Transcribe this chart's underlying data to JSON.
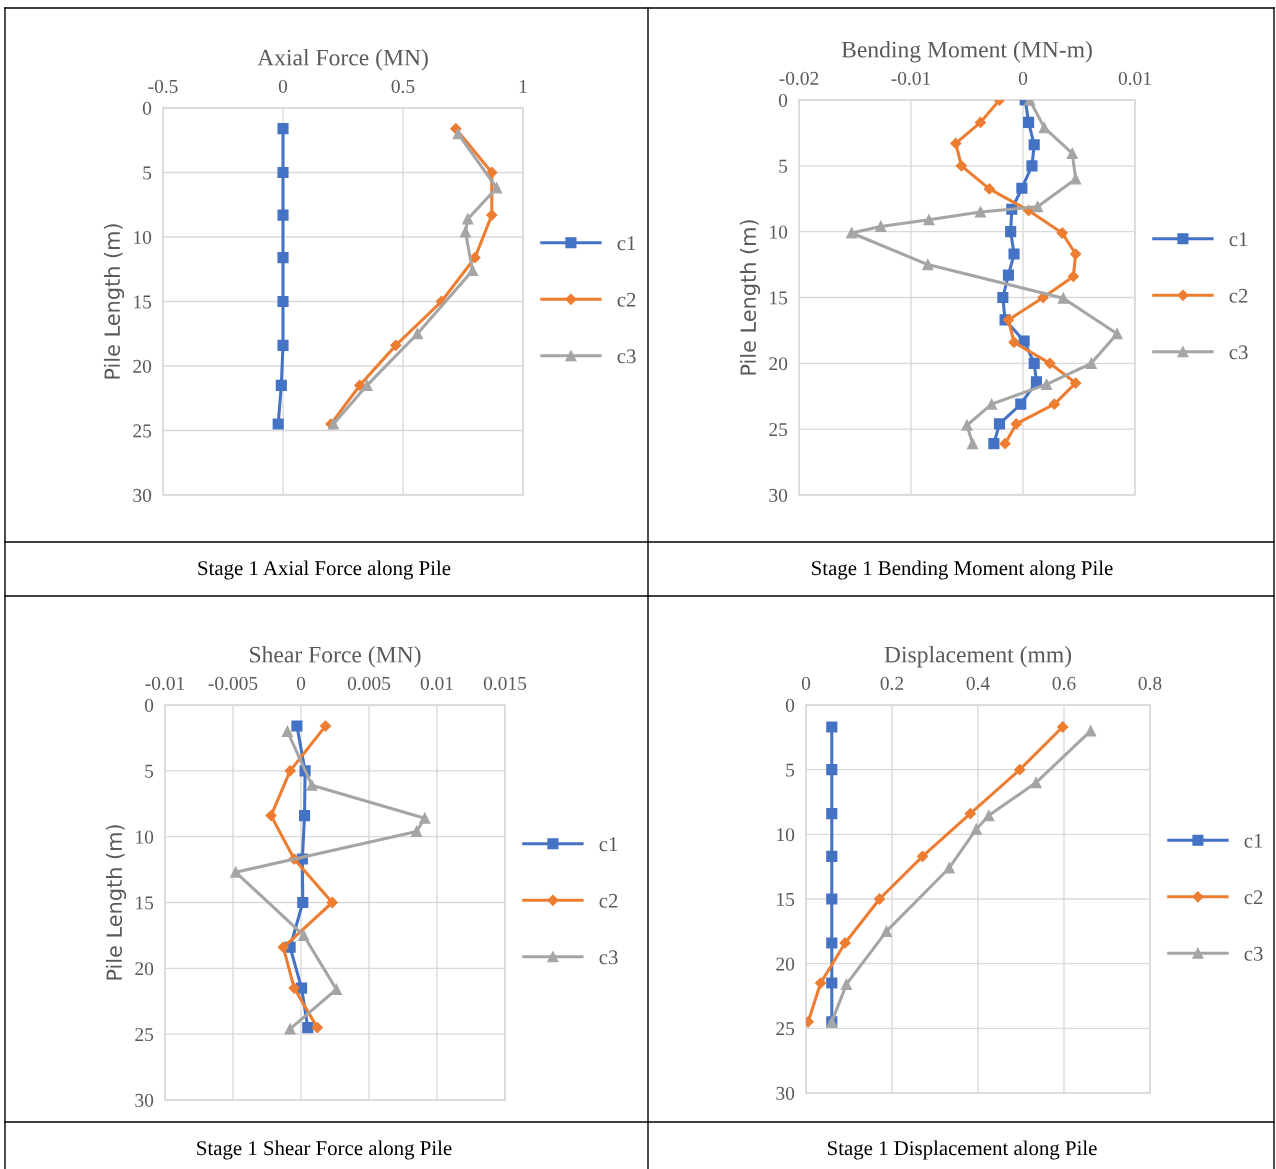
{
  "chart_data": [
    {
      "type": "line",
      "title": "Axial Force (MN)",
      "ylabel": "Pile Length (m)",
      "xlim": [
        -0.5,
        1
      ],
      "xticks": [
        -0.5,
        0,
        0.5,
        1
      ],
      "ylim": [
        30,
        0
      ],
      "yticks": [
        0,
        5,
        10,
        15,
        20,
        25,
        30
      ],
      "grid": true,
      "legend": "right",
      "annotations": [
        "Stage 1 Axial Force along Pile"
      ],
      "series": [
        {
          "name": "c1",
          "color": "#4472c4",
          "marker": "square",
          "x": [
            0,
            0,
            0,
            0,
            0,
            0,
            -0.007,
            -0.02
          ],
          "values": [
            1.6,
            5.0,
            8.3,
            11.6,
            15.0,
            18.4,
            21.5,
            24.5
          ]
        },
        {
          "name": "c2",
          "color": "#ed7d31",
          "marker": "diamond",
          "x": [
            0.72,
            0.87,
            0.87,
            0.8,
            0.66,
            0.47,
            0.32,
            0.2
          ],
          "values": [
            1.6,
            5.0,
            8.3,
            11.6,
            15.0,
            18.4,
            21.5,
            24.5
          ]
        },
        {
          "name": "c3",
          "color": "#a5a5a5",
          "marker": "triangle",
          "x": [
            0.73,
            0.89,
            0.77,
            0.76,
            0.79,
            0.56,
            0.35,
            0.21
          ],
          "values": [
            2.0,
            6.2,
            8.6,
            9.6,
            12.6,
            17.5,
            21.5,
            24.5
          ]
        }
      ]
    },
    {
      "type": "line",
      "title": "Bending Moment (MN-m)",
      "ylabel": "Pile Length (m)",
      "xlim": [
        -0.02,
        0.01
      ],
      "xticks": [
        -0.02,
        -0.01,
        0,
        0.01
      ],
      "ylim": [
        30,
        0
      ],
      "yticks": [
        0,
        5,
        10,
        15,
        20,
        25,
        30
      ],
      "grid": true,
      "legend": "right",
      "annotations": [
        "Stage 1 Bending Moment along Pile"
      ],
      "series": [
        {
          "name": "c1",
          "color": "#4472c4",
          "marker": "square",
          "x": [
            0.0002,
            0.0005,
            0.001,
            0.0008,
            -0.0001,
            -0.001,
            -0.0011,
            -0.0008,
            -0.0013,
            -0.0018,
            -0.0016,
            0.0001,
            0.001,
            0.0012,
            -0.0002,
            -0.0021,
            -0.0026
          ],
          "values": [
            0,
            1.7,
            3.4,
            5.0,
            6.7,
            8.3,
            10.0,
            11.7,
            13.3,
            15.0,
            16.7,
            18.3,
            20.0,
            21.4,
            23.1,
            24.6,
            26.1
          ]
        },
        {
          "name": "c2",
          "color": "#ed7d31",
          "marker": "diamond",
          "x": [
            -0.0021,
            -0.0038,
            -0.006,
            -0.0055,
            -0.003,
            0.0005,
            0.0035,
            0.0047,
            0.0045,
            0.0018,
            -0.0013,
            -0.0008,
            0.0024,
            0.0047,
            0.0028,
            -0.0006,
            -0.0016
          ],
          "values": [
            0,
            1.7,
            3.3,
            5.0,
            6.75,
            8.4,
            10.1,
            11.7,
            13.4,
            15.0,
            16.7,
            18.4,
            20.0,
            21.5,
            23.1,
            24.6,
            26.1
          ]
        },
        {
          "name": "c3",
          "color": "#a5a5a5",
          "marker": "triangle",
          "x": [
            0.0006,
            0.0019,
            0.0044,
            0.0047,
            0.0013,
            -0.0038,
            -0.0084,
            -0.0127,
            -0.0153,
            -0.0085,
            0.0036,
            0.0084,
            0.0061,
            0.0021,
            -0.0028,
            -0.005,
            -0.0045
          ],
          "values": [
            0,
            2.1,
            4.05,
            6.0,
            8.1,
            8.5,
            9.1,
            9.6,
            10.1,
            12.5,
            15.05,
            17.75,
            20.0,
            21.6,
            23.1,
            24.7,
            26.1
          ]
        }
      ]
    },
    {
      "type": "line",
      "title": "Shear Force (MN)",
      "ylabel": "Pile Length (m)",
      "xlim": [
        -0.01,
        0.015
      ],
      "xticks": [
        -0.01,
        -0.005,
        0,
        0.005,
        0.01,
        0.015
      ],
      "ylim": [
        30,
        0
      ],
      "yticks": [
        0,
        5,
        10,
        15,
        20,
        25,
        30
      ],
      "grid": true,
      "legend": "right",
      "annotations": [
        "Stage 1 Shear Force along Pile"
      ],
      "series": [
        {
          "name": "c1",
          "color": "#4472c4",
          "marker": "square",
          "x": [
            -0.0003,
            0.0003,
            0.00026,
            0.0001,
            0.00013,
            -0.0008,
            4e-05,
            0.0005
          ],
          "values": [
            1.6,
            5.0,
            8.4,
            11.7,
            15.0,
            18.4,
            21.5,
            24.5
          ]
        },
        {
          "name": "c2",
          "color": "#ed7d31",
          "marker": "diamond",
          "x": [
            0.0018,
            -0.0008,
            -0.0022,
            -0.0005,
            0.0023,
            -0.0013,
            -0.0005,
            0.0012
          ],
          "values": [
            1.6,
            5.0,
            8.4,
            11.7,
            15.0,
            18.4,
            21.5,
            24.5
          ]
        },
        {
          "name": "c3",
          "color": "#a5a5a5",
          "marker": "triangle",
          "x": [
            -0.001,
            0.0008,
            0.0091,
            0.0085,
            -0.0048,
            0.0002,
            0.0026,
            -0.0008
          ],
          "values": [
            2.0,
            6.1,
            8.6,
            9.6,
            12.7,
            17.5,
            21.6,
            24.6
          ]
        }
      ]
    },
    {
      "type": "line",
      "title": "Displacement (mm)",
      "xlim": [
        0,
        0.8
      ],
      "xticks": [
        0,
        0.2,
        0.4,
        0.6,
        0.8
      ],
      "ylim": [
        30,
        0
      ],
      "yticks": [
        0,
        5,
        10,
        15,
        20,
        25,
        30
      ],
      "grid": true,
      "legend": "right",
      "annotations": [
        "Stage 1 Displacement along Pile"
      ],
      "series": [
        {
          "name": "c1",
          "color": "#4472c4",
          "marker": "square",
          "x": [
            0.06,
            0.06,
            0.06,
            0.06,
            0.06,
            0.06,
            0.06,
            0.06
          ],
          "values": [
            1.7,
            5.0,
            8.4,
            11.7,
            15.0,
            18.4,
            21.5,
            24.5
          ]
        },
        {
          "name": "c2",
          "color": "#ed7d31",
          "marker": "diamond",
          "x": [
            0.597,
            0.497,
            0.382,
            0.271,
            0.171,
            0.091,
            0.034,
            0.005
          ],
          "values": [
            1.7,
            5.0,
            8.4,
            11.7,
            15.0,
            18.4,
            21.5,
            24.5
          ]
        },
        {
          "name": "c3",
          "color": "#a5a5a5",
          "marker": "triangle",
          "x": [
            0.662,
            0.535,
            0.425,
            0.396,
            0.333,
            0.187,
            0.094,
            0.06
          ],
          "values": [
            2.0,
            6.0,
            8.55,
            9.6,
            12.6,
            17.5,
            21.6,
            24.5
          ]
        }
      ]
    }
  ]
}
